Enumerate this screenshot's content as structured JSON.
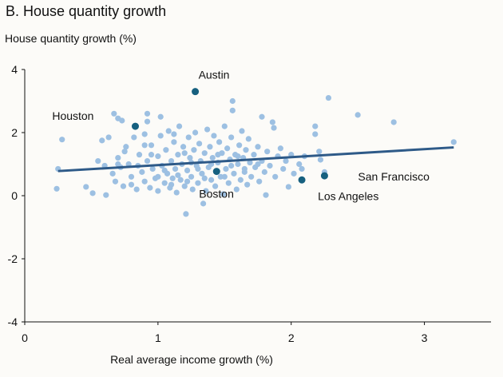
{
  "chart_data": {
    "type": "scatter",
    "title": "B. House quantity growth",
    "xlabel": "Real average income growth (%)",
    "ylabel": "House quantity growth (%)",
    "xlim": [
      0,
      3.5
    ],
    "ylim": [
      -4,
      4
    ],
    "xticks": [
      "0",
      "1",
      "2",
      "3"
    ],
    "yticks": [
      "4",
      "2",
      "0",
      "-2",
      "-4"
    ],
    "grid": false,
    "colors": {
      "points": "#9dc0e2",
      "highlight": "#16607f",
      "fit_line": "#2e5a88"
    },
    "fit_line": {
      "x": [
        0.25,
        3.22
      ],
      "y": [
        0.78,
        1.53
      ]
    },
    "highlighted": [
      {
        "name": "Austin",
        "x": 1.28,
        "y": 3.3
      },
      {
        "name": "Houston",
        "x": 0.83,
        "y": 2.2
      },
      {
        "name": "Boston",
        "x": 1.44,
        "y": 0.77
      },
      {
        "name": "Los Angeles",
        "x": 2.08,
        "y": 0.5
      },
      {
        "name": "San Francisco",
        "x": 2.25,
        "y": 0.63
      }
    ],
    "points": [
      [
        0.25,
        0.85
      ],
      [
        0.24,
        0.22
      ],
      [
        0.28,
        1.78
      ],
      [
        0.46,
        0.28
      ],
      [
        0.51,
        0.08
      ],
      [
        0.61,
        0.02
      ],
      [
        0.55,
        1.1
      ],
      [
        0.6,
        0.95
      ],
      [
        0.58,
        1.75
      ],
      [
        0.63,
        1.85
      ],
      [
        0.67,
        2.6
      ],
      [
        0.7,
        2.45
      ],
      [
        0.73,
        2.38
      ],
      [
        0.92,
        2.6
      ],
      [
        0.92,
        2.35
      ],
      [
        1.02,
        2.5
      ],
      [
        0.66,
        0.7
      ],
      [
        0.68,
        0.45
      ],
      [
        0.7,
        1.2
      ],
      [
        0.72,
        0.9
      ],
      [
        0.74,
        0.3
      ],
      [
        0.76,
        1.55
      ],
      [
        0.78,
        1.0
      ],
      [
        0.8,
        0.6
      ],
      [
        0.82,
        1.85
      ],
      [
        0.84,
        0.2
      ],
      [
        0.86,
        1.3
      ],
      [
        0.88,
        0.75
      ],
      [
        0.9,
        1.95
      ],
      [
        0.9,
        0.45
      ],
      [
        0.92,
        1.1
      ],
      [
        0.94,
        0.25
      ],
      [
        0.95,
        1.6
      ],
      [
        0.96,
        0.85
      ],
      [
        0.98,
        0.55
      ],
      [
        1.0,
        1.25
      ],
      [
        1.0,
        0.15
      ],
      [
        1.02,
        1.9
      ],
      [
        1.03,
        0.95
      ],
      [
        1.05,
        0.4
      ],
      [
        1.06,
        1.45
      ],
      [
        1.07,
        0.7
      ],
      [
        1.08,
        2.05
      ],
      [
        1.09,
        0.25
      ],
      [
        1.1,
        1.1
      ],
      [
        1.11,
        0.55
      ],
      [
        1.12,
        1.7
      ],
      [
        1.13,
        0.85
      ],
      [
        1.14,
        0.1
      ],
      [
        1.15,
        1.3
      ],
      [
        1.16,
        2.2
      ],
      [
        1.17,
        0.5
      ],
      [
        1.18,
        1.0
      ],
      [
        1.19,
        1.55
      ],
      [
        1.2,
        0.3
      ],
      [
        1.21,
        -0.58
      ],
      [
        1.22,
        0.8
      ],
      [
        1.23,
        1.85
      ],
      [
        1.24,
        1.2
      ],
      [
        1.25,
        0.6
      ],
      [
        1.26,
        0.2
      ],
      [
        1.27,
        1.45
      ],
      [
        1.28,
        2.0
      ],
      [
        1.29,
        0.95
      ],
      [
        1.3,
        0.4
      ],
      [
        1.31,
        1.65
      ],
      [
        1.32,
        1.1
      ],
      [
        1.33,
        0.7
      ],
      [
        1.34,
        -0.25
      ],
      [
        1.35,
        1.35
      ],
      [
        1.36,
        0.15
      ],
      [
        1.37,
        2.1
      ],
      [
        1.38,
        0.9
      ],
      [
        1.39,
        1.55
      ],
      [
        1.4,
        0.5
      ],
      [
        1.41,
        1.2
      ],
      [
        1.42,
        1.9
      ],
      [
        1.43,
        0.3
      ],
      [
        1.45,
        1.05
      ],
      [
        1.46,
        1.7
      ],
      [
        1.47,
        0.6
      ],
      [
        1.48,
        1.35
      ],
      [
        1.49,
        0.05
      ],
      [
        1.5,
        2.2
      ],
      [
        1.51,
        0.85
      ],
      [
        1.52,
        1.5
      ],
      [
        1.53,
        0.4
      ],
      [
        1.54,
        1.15
      ],
      [
        1.55,
        1.85
      ],
      [
        1.56,
        3.0
      ],
      [
        1.56,
        2.7
      ],
      [
        1.57,
        0.7
      ],
      [
        1.58,
        1.3
      ],
      [
        1.59,
        0.2
      ],
      [
        1.6,
        1.0
      ],
      [
        1.61,
        1.6
      ],
      [
        1.62,
        0.5
      ],
      [
        1.63,
        2.05
      ],
      [
        1.64,
        1.2
      ],
      [
        1.65,
        0.85
      ],
      [
        1.66,
        1.45
      ],
      [
        1.67,
        0.35
      ],
      [
        1.68,
        1.8
      ],
      [
        1.69,
        1.05
      ],
      [
        1.7,
        0.6
      ],
      [
        1.72,
        1.3
      ],
      [
        1.73,
        0.9
      ],
      [
        1.75,
        1.55
      ],
      [
        1.76,
        0.45
      ],
      [
        1.78,
        2.5
      ],
      [
        1.78,
        1.1
      ],
      [
        1.8,
        0.75
      ],
      [
        1.81,
        0.02
      ],
      [
        1.82,
        1.4
      ],
      [
        1.84,
        0.95
      ],
      [
        1.86,
        2.33
      ],
      [
        1.87,
        2.15
      ],
      [
        1.88,
        0.6
      ],
      [
        1.9,
        1.25
      ],
      [
        1.92,
        1.5
      ],
      [
        1.94,
        0.85
      ],
      [
        1.96,
        1.1
      ],
      [
        1.98,
        0.28
      ],
      [
        2.0,
        1.3
      ],
      [
        2.02,
        0.7
      ],
      [
        2.06,
        1.0
      ],
      [
        2.08,
        0.85
      ],
      [
        2.1,
        1.25
      ],
      [
        2.18,
        2.2
      ],
      [
        2.18,
        1.95
      ],
      [
        2.21,
        1.4
      ],
      [
        2.22,
        1.14
      ],
      [
        2.25,
        0.75
      ],
      [
        2.28,
        3.1
      ],
      [
        2.5,
        2.56
      ],
      [
        2.77,
        2.33
      ],
      [
        3.22,
        1.7
      ],
      [
        0.75,
        1.4
      ],
      [
        0.85,
        0.95
      ],
      [
        0.95,
        1.3
      ],
      [
        1.05,
        0.8
      ],
      [
        1.15,
        0.65
      ],
      [
        1.25,
        1.05
      ],
      [
        1.35,
        0.55
      ],
      [
        1.45,
        1.3
      ],
      [
        1.55,
        0.95
      ],
      [
        1.65,
        0.75
      ],
      [
        1.75,
        1.0
      ],
      [
        0.8,
        0.35
      ],
      [
        1.0,
        0.6
      ],
      [
        1.1,
        0.35
      ],
      [
        1.2,
        1.35
      ],
      [
        1.3,
        0.85
      ],
      [
        1.4,
        1.0
      ],
      [
        1.5,
        0.6
      ],
      [
        1.6,
        1.25
      ],
      [
        0.7,
        1.0
      ],
      [
        0.9,
        1.6
      ],
      [
        1.12,
        1.95
      ],
      [
        1.22,
        0.45
      ]
    ]
  }
}
